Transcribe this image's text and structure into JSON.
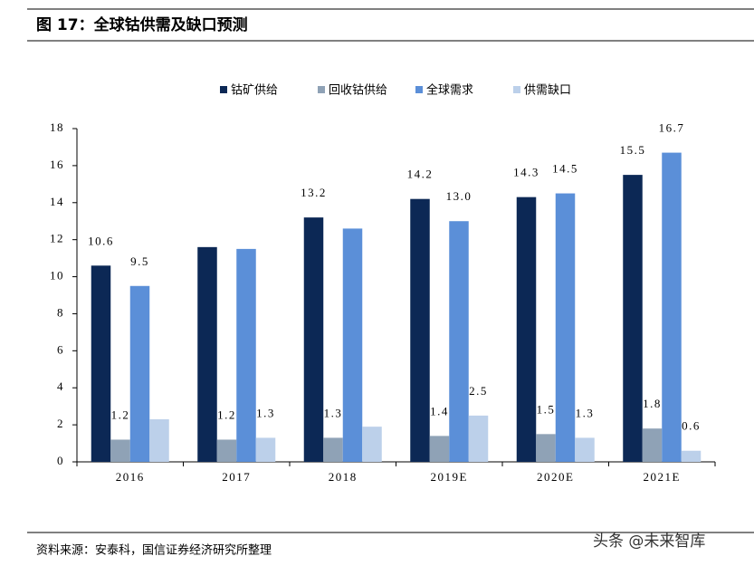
{
  "chart_data": {
    "type": "bar",
    "title": "图 17：全球钴供需及缺口预测",
    "source": "资料来源：安泰科，国信证券经济研究所整理",
    "watermark": "头条 @未来智库",
    "categories": [
      "2016",
      "2017",
      "2018",
      "2019E",
      "2020E",
      "2021E"
    ],
    "series": [
      {
        "name": "钴矿供给",
        "color": "#0c2855",
        "values": [
          10.6,
          11.6,
          13.2,
          14.2,
          14.3,
          15.5
        ],
        "value_labels": [
          "10.6",
          null,
          "13.2",
          "14.2",
          "14.3",
          "15.5"
        ]
      },
      {
        "name": "回收钴供给",
        "color": "#8fa2b6",
        "values": [
          1.2,
          1.2,
          1.3,
          1.4,
          1.5,
          1.8
        ],
        "value_labels": [
          "1.2",
          "1.2",
          "1.3",
          "1.4",
          "1.5",
          "1.8"
        ]
      },
      {
        "name": "全球需求",
        "color": "#5b8fd8",
        "values": [
          9.5,
          11.5,
          12.6,
          13.0,
          14.5,
          16.7
        ],
        "value_labels": [
          "9.5",
          null,
          null,
          "13.0",
          "14.5",
          "16.7"
        ]
      },
      {
        "name": "供需缺口",
        "color": "#bcd0ea",
        "values": [
          2.3,
          1.3,
          1.9,
          2.5,
          1.3,
          0.6
        ],
        "value_labels": [
          null,
          "1.3",
          null,
          "2.5",
          "1.3",
          "0.6"
        ]
      }
    ],
    "ylim": [
      0,
      18
    ],
    "yticks": [
      0,
      2,
      4,
      6,
      8,
      10,
      12,
      14,
      16,
      18
    ],
    "legend": "top",
    "grid": false
  }
}
